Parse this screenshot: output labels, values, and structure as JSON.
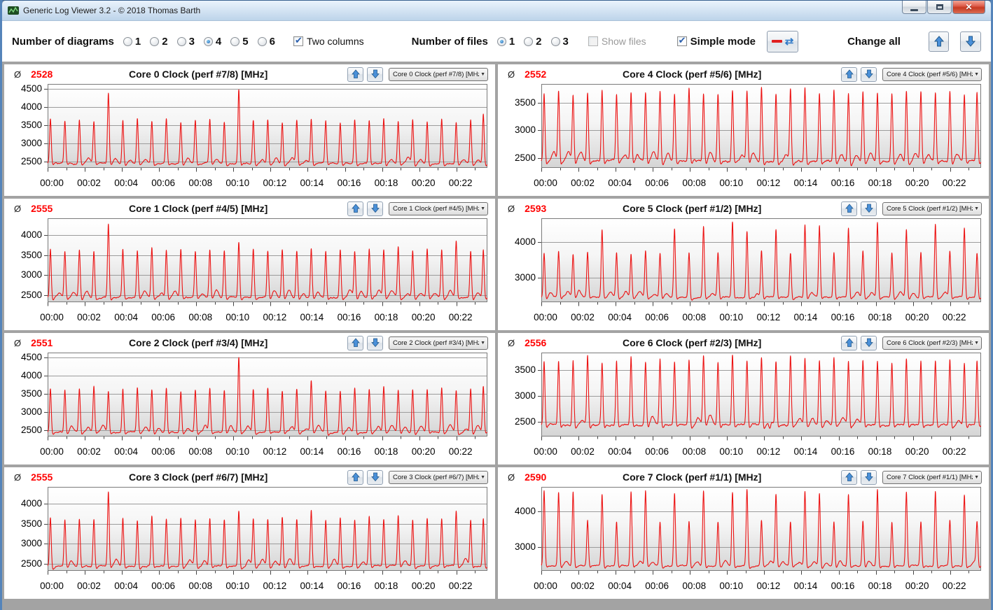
{
  "window": {
    "title": "Generic Log Viewer 3.2 - © 2018 Thomas Barth"
  },
  "icons": {
    "average": "Ø",
    "chevron_down": "▼",
    "check": "✔",
    "close": "✕",
    "swap": "⇄"
  },
  "colors": {
    "series": "#ec1212",
    "average_value": "#ff0000",
    "grid": "#9c9c9c",
    "plot_border": "#7a7a7a"
  },
  "toolbar": {
    "diagrams_label": "Number of diagrams",
    "diagram_options": [
      "1",
      "2",
      "3",
      "4",
      "5",
      "6"
    ],
    "diagrams_selected_index": 3,
    "two_columns_label": "Two columns",
    "two_columns_checked": true,
    "files_label": "Number of files",
    "file_options": [
      "1",
      "2",
      "3"
    ],
    "files_selected_index": 0,
    "show_files_label": "Show files",
    "show_files_checked": false,
    "show_files_disabled": true,
    "simple_mode_label": "Simple mode",
    "simple_mode_checked": true,
    "change_all_label": "Change all"
  },
  "chart_data": {
    "type": "line",
    "x": {
      "ticks": [
        "00:00",
        "00:02",
        "00:04",
        "00:06",
        "00:08",
        "00:10",
        "00:12",
        "00:14",
        "00:16",
        "00:18",
        "00:20",
        "00:22"
      ],
      "minutes_max": 23.67,
      "major_step_min": 2,
      "minor_step_min": 1,
      "spike_times": [
        0.15,
        0.93,
        1.71,
        2.49,
        3.27,
        4.05,
        4.83,
        5.61,
        6.39,
        7.17,
        7.95,
        8.73,
        9.51,
        10.29,
        11.07,
        11.85,
        12.63,
        13.41,
        14.19,
        14.97,
        15.75,
        16.53,
        17.31,
        18.09,
        18.87,
        19.65,
        20.43,
        21.21,
        21.99,
        22.77,
        23.45
      ]
    },
    "grid": "horizontal",
    "legend": "none",
    "charts": [
      {
        "avg": "2528",
        "title": "Core 0 Clock (perf #7/8) [MHz]",
        "dropdown": "Core 0 Clock (perf #7/8) [MHz]",
        "ylim": [
          2320,
          4640
        ],
        "yticks": [
          2500,
          3000,
          3500,
          4000,
          4500
        ],
        "baseline": 2450,
        "spike_values": [
          3660,
          3620,
          3650,
          3600,
          4380,
          3640,
          3700,
          3620,
          3660,
          3590,
          3630,
          3650,
          3600,
          4500,
          3620,
          3660,
          3600,
          3640,
          3680,
          3620,
          3590,
          3660,
          3630,
          3700,
          3610,
          3650,
          3620,
          3680,
          3600,
          3640,
          3820
        ],
        "dips": []
      },
      {
        "avg": "2552",
        "title": "Core 4 Clock (perf #5/6) [MHz]",
        "dropdown": "Core 4 Clock (perf #5/6) [MHz]",
        "ylim": [
          2320,
          3840
        ],
        "yticks": [
          2500,
          3000,
          3500
        ],
        "baseline": 2450,
        "spike_values": [
          3680,
          3720,
          3650,
          3700,
          3740,
          3660,
          3700,
          3680,
          3720,
          3650,
          3780,
          3700,
          3660,
          3740,
          3700,
          3800,
          3680,
          3750,
          3800,
          3700,
          3760,
          3680,
          3720,
          3700,
          3660,
          3740,
          3700,
          3680,
          3720,
          3650,
          3700
        ],
        "dips": []
      },
      {
        "avg": "2555",
        "title": "Core 1 Clock (perf #4/5) [MHz]",
        "dropdown": "Core 1 Clock (perf #4/5) [MHz]",
        "ylim": [
          2320,
          4420
        ],
        "yticks": [
          2500,
          3000,
          3500,
          4000
        ],
        "baseline": 2450,
        "spike_values": [
          3670,
          3600,
          3640,
          3620,
          4300,
          3650,
          3600,
          3680,
          3620,
          3660,
          3590,
          3640,
          3600,
          3830,
          3650,
          3600,
          3660,
          3620,
          3680,
          3600,
          3640,
          3590,
          3660,
          3620,
          3700,
          3600,
          3650,
          3620,
          3830,
          3600,
          3640
        ],
        "dips": []
      },
      {
        "avg": "2593",
        "title": "Core 5 Clock (perf #1/2) [MHz]",
        "dropdown": "Core 5 Clock (perf #1/2) [MHz]",
        "ylim": [
          2320,
          4660
        ],
        "yticks": [
          3000,
          4000
        ],
        "baseline": 2470,
        "spike_values": [
          3700,
          3750,
          3680,
          3720,
          4350,
          3700,
          3680,
          3750,
          3700,
          4400,
          3720,
          4450,
          3700,
          4550,
          4300,
          3750,
          4350,
          3700,
          4500,
          4450,
          3720,
          4400,
          3750,
          4550,
          3700,
          4350,
          3720,
          4500,
          3750,
          4400,
          3700
        ],
        "dips": []
      },
      {
        "avg": "2551",
        "title": "Core 2 Clock (perf #3/4) [MHz]",
        "dropdown": "Core 2 Clock (perf #3/4) [MHz]",
        "ylim": [
          2320,
          4640
        ],
        "yticks": [
          2500,
          3000,
          3500,
          4000,
          4500
        ],
        "baseline": 2450,
        "spike_values": [
          3660,
          3620,
          3650,
          3700,
          3600,
          3640,
          3680,
          3620,
          3660,
          3590,
          3630,
          3650,
          3600,
          4500,
          3620,
          3660,
          3600,
          3640,
          3850,
          3620,
          3590,
          3660,
          3630,
          3700,
          3610,
          3650,
          3620,
          3680,
          3600,
          3640,
          3700
        ],
        "dips": []
      },
      {
        "avg": "2556",
        "title": "Core 6 Clock (perf #2/3) [MHz]",
        "dropdown": "Core 6 Clock (perf #2/3) [MHz]",
        "ylim": [
          2210,
          3840
        ],
        "yticks": [
          2500,
          3000,
          3500
        ],
        "baseline": 2450,
        "spike_values": [
          3700,
          3680,
          3720,
          3800,
          3660,
          3700,
          3740,
          3680,
          3720,
          3650,
          3700,
          3780,
          3660,
          3820,
          3700,
          3750,
          3680,
          3800,
          3720,
          3700,
          3760,
          3680,
          3720,
          3700,
          3660,
          3740,
          3700,
          3680,
          3720,
          3650,
          3700
        ],
        "dips": [
          [
            12.3,
            2240
          ]
        ]
      },
      {
        "avg": "2555",
        "title": "Core 3 Clock (perf #6/7) [MHz]",
        "dropdown": "Core 3 Clock (perf #6/7) [MHz]",
        "ylim": [
          2320,
          4420
        ],
        "yticks": [
          2500,
          3000,
          3500,
          4000
        ],
        "baseline": 2450,
        "spike_values": [
          3670,
          3600,
          3640,
          3620,
          4300,
          3650,
          3600,
          3680,
          3620,
          3660,
          3590,
          3640,
          3600,
          3830,
          3650,
          3600,
          3660,
          3620,
          3850,
          3600,
          3640,
          3590,
          3660,
          3620,
          3700,
          3600,
          3650,
          3620,
          3830,
          3600,
          3640
        ],
        "dips": []
      },
      {
        "avg": "2590",
        "title": "Core 7 Clock (perf #1/1) [MHz]",
        "dropdown": "Core 7 Clock (perf #1/1) [MHz]",
        "ylim": [
          2320,
          4700
        ],
        "yticks": [
          3000,
          4000
        ],
        "baseline": 2470,
        "spike_values": [
          4600,
          4550,
          4600,
          3750,
          4500,
          3720,
          4550,
          4600,
          3700,
          4500,
          3750,
          4600,
          3720,
          4550,
          4650,
          3750,
          4500,
          3700,
          4600,
          4550,
          3720,
          4500,
          3750,
          4650,
          3700,
          4550,
          3720,
          4600,
          3750,
          4500,
          3700
        ],
        "dips": []
      }
    ]
  }
}
